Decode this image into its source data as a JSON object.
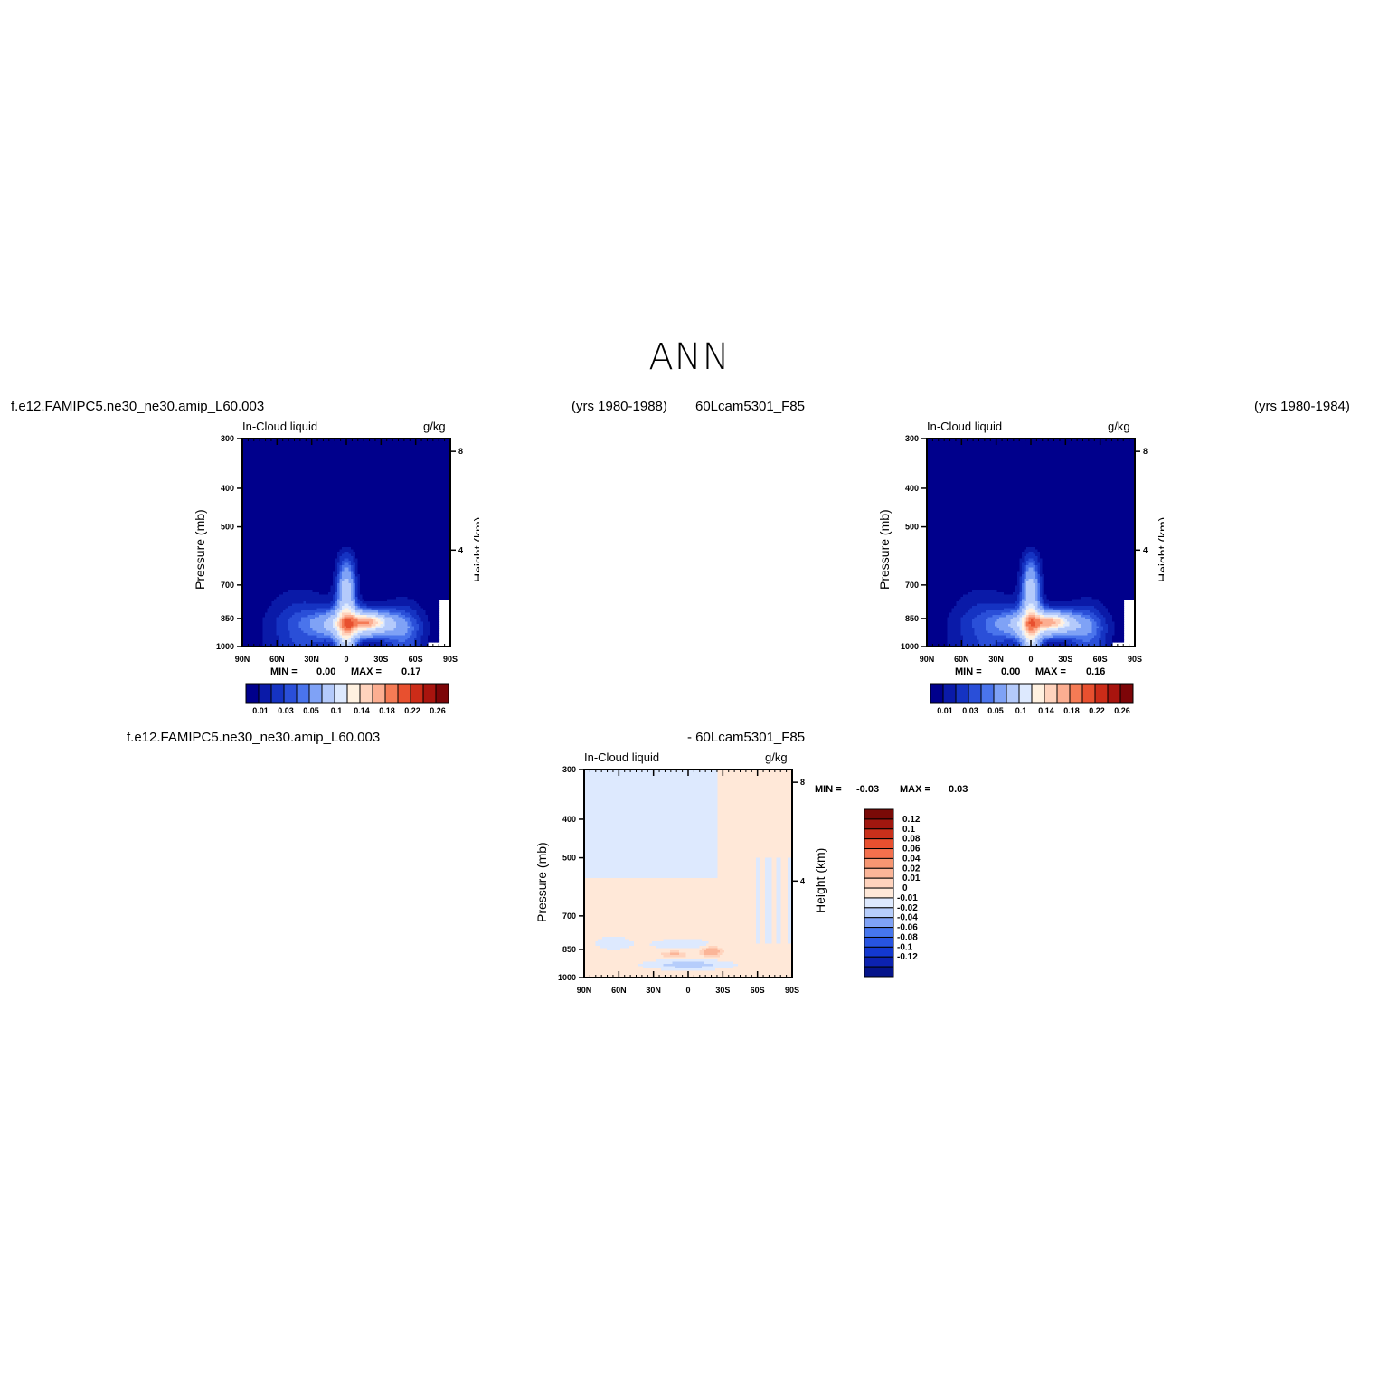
{
  "page": {
    "title": "ANN"
  },
  "header_left": {
    "case": "f.e12.FAMIPC5.ne30_ne30.amip_L60.003",
    "years": "(yrs 1980-1988)"
  },
  "header_right": {
    "case": "60Lcam5301_F85",
    "years": "(yrs 1980-1984)"
  },
  "diff_header": {
    "case_a": "f.e12.FAMIPC5.ne30_ne30.amip_L60.003",
    "case_b": "- 60Lcam5301_F85"
  },
  "colors": {
    "abs_levels": [
      "#00008c",
      "#0a1aa8",
      "#1533c2",
      "#2a4fd8",
      "#4a74ec",
      "#7fa2f6",
      "#b4cafb",
      "#dde9fe",
      "#fff1e0",
      "#ffd3bd",
      "#fcae91",
      "#f57b55",
      "#e8502f",
      "#cc2c18",
      "#a8140e",
      "#7d0508"
    ],
    "diff_levels": [
      "#05148a",
      "#0c22b0",
      "#1338d0",
      "#2754e2",
      "#4676ee",
      "#7fa2f6",
      "#b6cdfb",
      "#dde9fe",
      "#ffe8d8",
      "#ffd3bd",
      "#fbb598",
      "#f79672",
      "#f4704d",
      "#e8502f",
      "#c9301b",
      "#a0170f",
      "#7a0a07"
    ]
  },
  "chart_data": [
    {
      "type": "heatmap",
      "title": "In-Cloud liquid",
      "units": "g/kg",
      "xlabel": "",
      "ylabel": "Pressure (mb)",
      "ylabel_right": "Height (km)",
      "x_ticks": [
        "90N",
        "60N",
        "30N",
        "0",
        "30S",
        "60S",
        "90S"
      ],
      "y_ticks": [
        "300",
        "400",
        "500",
        "700",
        "850",
        "1000"
      ],
      "y_ticks_right": [
        "8",
        "4"
      ],
      "ylim": [
        1000,
        300
      ],
      "min_label": "MIN =",
      "min_value": "0.00",
      "max_label": "MAX =",
      "max_value": "0.17",
      "colorbar_labels": [
        "0.01",
        "0.03",
        "0.05",
        "0.1",
        "0.14",
        "0.18",
        "0.22",
        "0.26"
      ],
      "features": [
        {
          "lat": 0,
          "p_top": 545,
          "peak": 0.08
        },
        {
          "lat": -18,
          "p": 870,
          "peak": 0.17
        }
      ]
    },
    {
      "type": "heatmap",
      "title": "In-Cloud liquid",
      "units": "g/kg",
      "xlabel": "",
      "ylabel": "Pressure (mb)",
      "ylabel_right": "Height (km)",
      "x_ticks": [
        "90N",
        "60N",
        "30N",
        "0",
        "30S",
        "60S",
        "90S"
      ],
      "y_ticks": [
        "300",
        "400",
        "500",
        "700",
        "850",
        "1000"
      ],
      "y_ticks_right": [
        "8",
        "4"
      ],
      "ylim": [
        1000,
        300
      ],
      "min_label": "MIN =",
      "min_value": "0.00",
      "max_label": "MAX =",
      "max_value": "0.16",
      "colorbar_labels": [
        "0.01",
        "0.03",
        "0.05",
        "0.1",
        "0.14",
        "0.18",
        "0.22",
        "0.26"
      ],
      "features": [
        {
          "lat": 0,
          "p_top": 545,
          "peak": 0.08
        },
        {
          "lat": -18,
          "p": 870,
          "peak": 0.16
        }
      ]
    },
    {
      "type": "heatmap",
      "title": "In-Cloud liquid",
      "units": "g/kg",
      "xlabel": "",
      "ylabel": "Pressure (mb)",
      "ylabel_right": "Height (km)",
      "x_ticks": [
        "90N",
        "60N",
        "30N",
        "0",
        "30S",
        "60S",
        "90S"
      ],
      "y_ticks": [
        "300",
        "400",
        "500",
        "700",
        "850",
        "1000"
      ],
      "y_ticks_right": [
        "8",
        "4"
      ],
      "ylim": [
        1000,
        300
      ],
      "min_label": "MIN =",
      "min_value": "-0.03",
      "max_label": "MAX =",
      "max_value": "0.03",
      "colorbar_labels": [
        "0.12",
        "0.1",
        "0.08",
        "0.06",
        "0.04",
        "0.02",
        "0.01",
        "0",
        "-0.01",
        "-0.02",
        "-0.04",
        "-0.06",
        "-0.08",
        "-0.1",
        "-0.12"
      ]
    }
  ]
}
